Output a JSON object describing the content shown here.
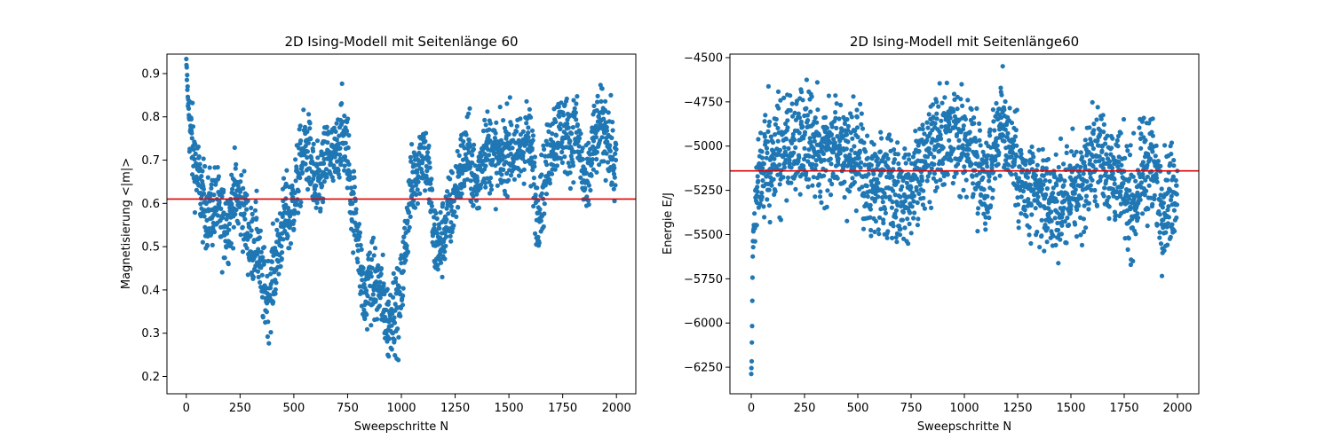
{
  "colors": {
    "points": "#1f77b4",
    "mean_line": "#e00000",
    "axes": "#000000"
  },
  "chart_data": [
    {
      "type": "scatter",
      "title": "2D Ising-Modell mit Seitenlänge 60",
      "xlabel": "Sweepschritte N",
      "ylabel": "Magnetisierung <|m|>",
      "xlim": [
        -90,
        2090
      ],
      "ylim": [
        0.16,
        0.945
      ],
      "xticks": [
        0,
        250,
        500,
        750,
        1000,
        1250,
        1500,
        1750,
        2000
      ],
      "yticks": [
        0.2,
        0.3,
        0.4,
        0.5,
        0.6,
        0.7,
        0.8,
        0.9
      ],
      "tick_decimals": 1,
      "grid": false,
      "hline": 0.61,
      "n_points": 2000,
      "x_step": 1,
      "noise": 0.045,
      "trend": [
        [
          0,
          0.92
        ],
        [
          10,
          0.82
        ],
        [
          25,
          0.74
        ],
        [
          50,
          0.67
        ],
        [
          80,
          0.6
        ],
        [
          100,
          0.58
        ],
        [
          140,
          0.6
        ],
        [
          170,
          0.55
        ],
        [
          200,
          0.56
        ],
        [
          220,
          0.62
        ],
        [
          260,
          0.6
        ],
        [
          300,
          0.5
        ],
        [
          330,
          0.52
        ],
        [
          350,
          0.42
        ],
        [
          380,
          0.38
        ],
        [
          400,
          0.43
        ],
        [
          430,
          0.5
        ],
        [
          460,
          0.58
        ],
        [
          480,
          0.56
        ],
        [
          520,
          0.66
        ],
        [
          550,
          0.73
        ],
        [
          580,
          0.7
        ],
        [
          600,
          0.62
        ],
        [
          630,
          0.66
        ],
        [
          660,
          0.72
        ],
        [
          690,
          0.69
        ],
        [
          720,
          0.77
        ],
        [
          750,
          0.72
        ],
        [
          770,
          0.6
        ],
        [
          790,
          0.57
        ],
        [
          810,
          0.45
        ],
        [
          830,
          0.37
        ],
        [
          850,
          0.43
        ],
        [
          880,
          0.41
        ],
        [
          910,
          0.39
        ],
        [
          940,
          0.32
        ],
        [
          960,
          0.36
        ],
        [
          990,
          0.35
        ],
        [
          1010,
          0.46
        ],
        [
          1040,
          0.62
        ],
        [
          1070,
          0.68
        ],
        [
          1100,
          0.73
        ],
        [
          1130,
          0.66
        ],
        [
          1150,
          0.52
        ],
        [
          1180,
          0.5
        ],
        [
          1210,
          0.56
        ],
        [
          1240,
          0.6
        ],
        [
          1270,
          0.67
        ],
        [
          1310,
          0.72
        ],
        [
          1350,
          0.63
        ],
        [
          1380,
          0.73
        ],
        [
          1420,
          0.72
        ],
        [
          1460,
          0.69
        ],
        [
          1500,
          0.74
        ],
        [
          1540,
          0.7
        ],
        [
          1580,
          0.76
        ],
        [
          1610,
          0.7
        ],
        [
          1630,
          0.58
        ],
        [
          1660,
          0.64
        ],
        [
          1700,
          0.75
        ],
        [
          1750,
          0.77
        ],
        [
          1790,
          0.74
        ],
        [
          1810,
          0.78
        ],
        [
          1840,
          0.68
        ],
        [
          1860,
          0.62
        ],
        [
          1890,
          0.73
        ],
        [
          1930,
          0.78
        ],
        [
          1960,
          0.76
        ],
        [
          1990,
          0.68
        ],
        [
          2000,
          0.68
        ]
      ]
    },
    {
      "type": "scatter",
      "title": "2D Ising-Modell mit Seitenlänge60",
      "xlabel": "Sweepschritte N",
      "ylabel": "Energie E/J",
      "xlim": [
        -100,
        2100
      ],
      "ylim": [
        -6400,
        -4480
      ],
      "xticks": [
        0,
        250,
        500,
        750,
        1000,
        1250,
        1500,
        1750,
        2000
      ],
      "yticks": [
        -4500,
        -4750,
        -5000,
        -5250,
        -5500,
        -5750,
        -6000,
        -6250
      ],
      "tick_decimals": 0,
      "grid": false,
      "hline": -5140,
      "n_points": 2000,
      "x_step": 1,
      "noise": 140,
      "trend": [
        [
          0,
          -6370
        ],
        [
          4,
          -5960
        ],
        [
          8,
          -5560
        ],
        [
          15,
          -5380
        ],
        [
          30,
          -5230
        ],
        [
          60,
          -5120
        ],
        [
          100,
          -5060
        ],
        [
          150,
          -5010
        ],
        [
          200,
          -4990
        ],
        [
          250,
          -4970
        ],
        [
          300,
          -5000
        ],
        [
          350,
          -4990
        ],
        [
          380,
          -4940
        ],
        [
          420,
          -5020
        ],
        [
          460,
          -5010
        ],
        [
          500,
          -5080
        ],
        [
          540,
          -5190
        ],
        [
          580,
          -5260
        ],
        [
          620,
          -5200
        ],
        [
          660,
          -5240
        ],
        [
          700,
          -5280
        ],
        [
          740,
          -5230
        ],
        [
          780,
          -5150
        ],
        [
          820,
          -5080
        ],
        [
          860,
          -4990
        ],
        [
          900,
          -5010
        ],
        [
          950,
          -4980
        ],
        [
          1000,
          -4990
        ],
        [
          1040,
          -5030
        ],
        [
          1080,
          -5140
        ],
        [
          1110,
          -5220
        ],
        [
          1140,
          -4980
        ],
        [
          1170,
          -4870
        ],
        [
          1200,
          -4930
        ],
        [
          1240,
          -5080
        ],
        [
          1280,
          -5250
        ],
        [
          1320,
          -5290
        ],
        [
          1360,
          -5280
        ],
        [
          1400,
          -5320
        ],
        [
          1450,
          -5340
        ],
        [
          1500,
          -5270
        ],
        [
          1550,
          -5220
        ],
        [
          1600,
          -5080
        ],
        [
          1640,
          -5020
        ],
        [
          1680,
          -5140
        ],
        [
          1720,
          -5180
        ],
        [
          1760,
          -5290
        ],
        [
          1800,
          -5320
        ],
        [
          1840,
          -5130
        ],
        [
          1870,
          -5080
        ],
        [
          1900,
          -5200
        ],
        [
          1930,
          -5320
        ],
        [
          1960,
          -5290
        ],
        [
          2000,
          -5200
        ]
      ]
    }
  ]
}
